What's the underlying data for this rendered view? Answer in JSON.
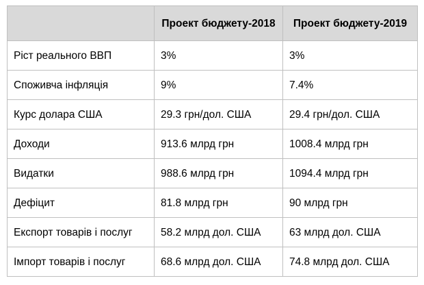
{
  "table": {
    "headers": [
      "",
      "Проект бюджету-2018",
      "Проект бюджету-2019"
    ],
    "rows": [
      {
        "label": "Ріст реального ВВП",
        "y2018": "3%",
        "y2019": "3%"
      },
      {
        "label": "Споживча інфляція",
        "y2018": "9%",
        "y2019": "7.4%"
      },
      {
        "label": "Курс долара США",
        "y2018": "29.3 грн/дол. США",
        "y2019": "29.4 грн/дол. США"
      },
      {
        "label": "Доходи",
        "y2018": "913.6 млрд грн",
        "y2019": "1008.4 млрд грн"
      },
      {
        "label": "Видатки",
        "y2018": "988.6 млрд грн",
        "y2019": "1094.4 млрд грн"
      },
      {
        "label": "Дефіцит",
        "y2018": "81.8 млрд грн",
        "y2019": "90 млрд грн"
      },
      {
        "label": "Експорт товарів і послуг",
        "y2018": "58.2 млрд дол. США",
        "y2019": "63 млрд дол. США"
      },
      {
        "label": "Імпорт товарів і послуг",
        "y2018": "68.6 млрд дол. США",
        "y2019": "74.8 млрд дол. США"
      }
    ]
  },
  "colors": {
    "header_bg": "#d9d9d9",
    "border": "#bfbfbf"
  }
}
